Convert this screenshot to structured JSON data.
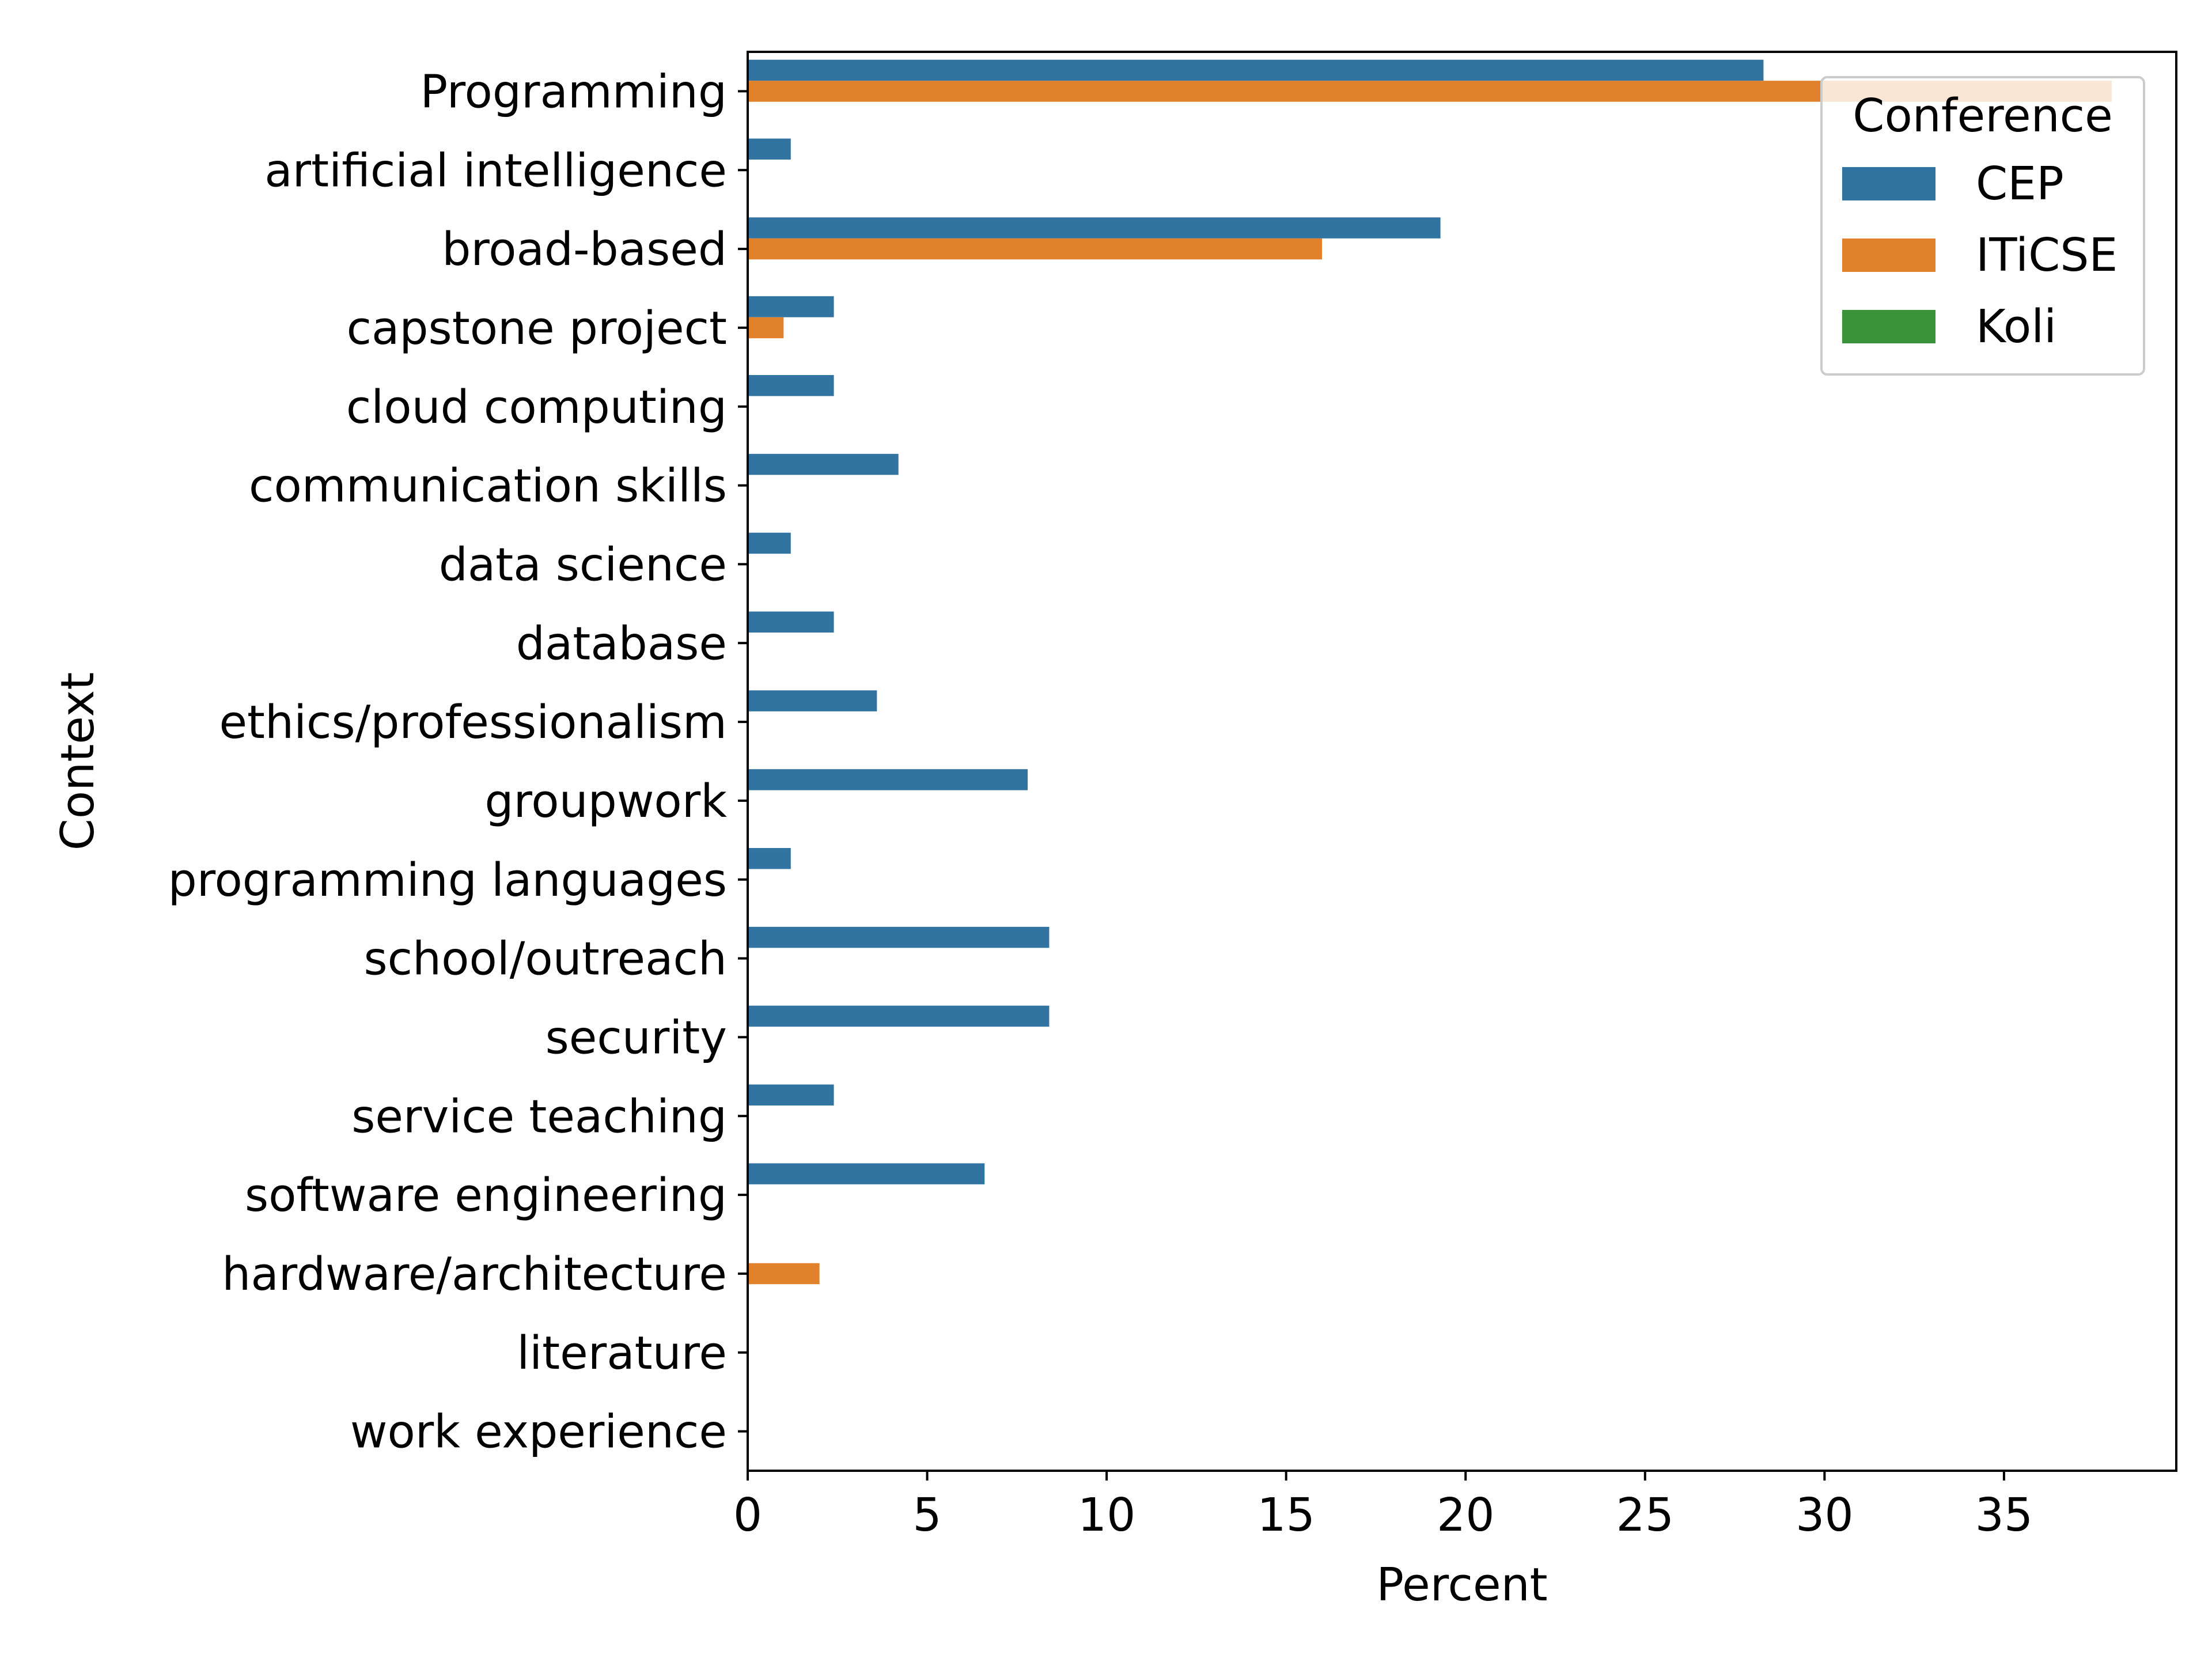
{
  "chart_data": {
    "type": "bar",
    "orientation": "horizontal",
    "xlabel": "Percent",
    "ylabel": "Context",
    "xlim": [
      0,
      40
    ],
    "x_ticks": [
      0,
      5,
      10,
      15,
      20,
      25,
      30,
      35
    ],
    "grid": false,
    "legend": {
      "title": "Conference",
      "placement": "top-right"
    },
    "categories": [
      "Programming",
      "artificial intelligence",
      "broad-based",
      "capstone project",
      "cloud computing",
      "communication skills",
      "data science",
      "database",
      "ethics/professionalism",
      "groupwork",
      "programming languages",
      "school/outreach",
      "security",
      "service teaching",
      "software engineering",
      "hardware/architecture",
      "literature",
      "work experience"
    ],
    "series": [
      {
        "name": "CEP",
        "color": "#3274a1",
        "values": [
          28.3,
          1.2,
          19.3,
          2.4,
          2.4,
          4.2,
          1.2,
          2.4,
          3.6,
          7.8,
          1.2,
          8.4,
          8.4,
          2.4,
          6.6,
          0,
          0,
          0
        ]
      },
      {
        "name": "ITiCSE",
        "color": "#e1812c",
        "values": [
          38.0,
          0,
          16.0,
          1.0,
          0,
          0,
          0,
          0,
          0,
          0,
          0,
          0,
          0,
          0,
          0,
          2.0,
          0,
          0
        ]
      },
      {
        "name": "Koli",
        "color": "#3a923a",
        "values": [
          0,
          0,
          0,
          0,
          0,
          0,
          0,
          0,
          0,
          0,
          0,
          0,
          0,
          0,
          0,
          0,
          0,
          0
        ]
      }
    ]
  }
}
